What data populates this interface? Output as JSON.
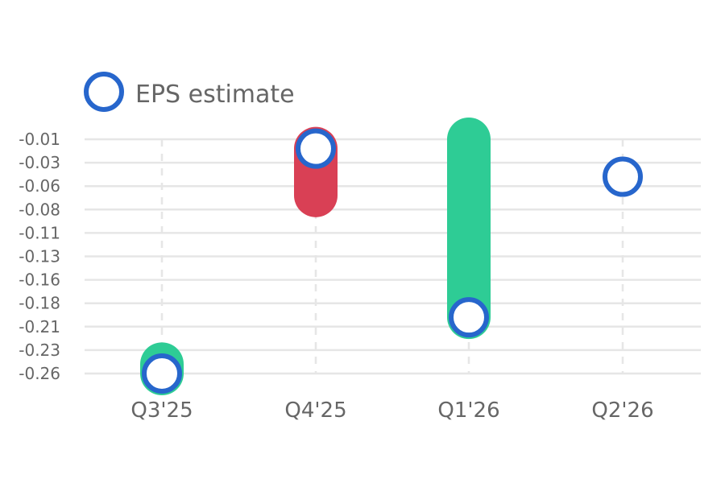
{
  "chart_data": {
    "type": "scatter",
    "legend": {
      "label": "EPS estimate",
      "placement": "top-left"
    },
    "categories": [
      "Q3'25",
      "Q4'25",
      "Q1'26",
      "Q2'26"
    ],
    "y_ticks": [
      "-0.01",
      "-0.03",
      "-0.06",
      "-0.08",
      "-0.11",
      "-0.13",
      "-0.16",
      "-0.18",
      "-0.21",
      "-0.23",
      "-0.26"
    ],
    "ylim": [
      -0.26,
      -0.01
    ],
    "grid": {
      "horizontal": true,
      "vertical_dashed": true
    },
    "series": [
      {
        "name": "EPS estimate",
        "values": [
          -0.26,
          -0.02,
          -0.2,
          -0.05
        ]
      }
    ],
    "bars": [
      {
        "category": "Q3'25",
        "from": -0.26,
        "to": -0.25,
        "color": "#2ecc95"
      },
      {
        "category": "Q4'25",
        "from": -0.02,
        "to": -0.07,
        "color": "#d94055"
      },
      {
        "category": "Q1'26",
        "from": -0.2,
        "to": -0.01,
        "color": "#2ecc95"
      }
    ],
    "colors": {
      "marker": "#2766cc",
      "beat": "#2ecc95",
      "miss": "#d94055",
      "grid": "#e6e6e6",
      "text": "#666666"
    }
  }
}
